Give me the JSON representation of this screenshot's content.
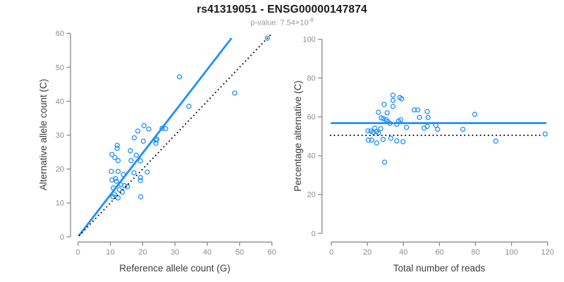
{
  "header": {
    "title": "rs41319051 - ENSG00000147874",
    "pvalue_prefix": "p-value: 7.54×10",
    "pvalue_exponent": "-8"
  },
  "colors": {
    "accent_blue": "#1e90ff",
    "axis_gray": "#898989",
    "tick_label_gray": "#8e8e8e",
    "axis_label_dark": "#3d3d3d"
  },
  "chart_data": [
    {
      "type": "scatter",
      "panel": "left",
      "xlabel": "Reference allele count (G)",
      "ylabel": "Alternative allele count (C)",
      "xlim": [
        0,
        60
      ],
      "ylim": [
        0,
        60
      ],
      "xticks": [
        0,
        10,
        20,
        30,
        40,
        50,
        60
      ],
      "yticks": [
        0,
        10,
        20,
        30,
        40,
        50,
        60
      ],
      "grid": false,
      "point_color": "#1e90ff",
      "points": [
        [
          58.6,
          58.6
        ],
        [
          48.5,
          42.4
        ],
        [
          31.4,
          47.2
        ],
        [
          34.3,
          38.5
        ],
        [
          20.4,
          32.8
        ],
        [
          21.9,
          31.8
        ],
        [
          18.5,
          31.2
        ],
        [
          26.0,
          32.0
        ],
        [
          27.1,
          31.9
        ],
        [
          17.4,
          29.2
        ],
        [
          24.4,
          28.8
        ],
        [
          20.2,
          28.2
        ],
        [
          24.1,
          28.5
        ],
        [
          24.1,
          27.6
        ],
        [
          12.1,
          27.0
        ],
        [
          12.1,
          26.1
        ],
        [
          16.2,
          25.4
        ],
        [
          10.5,
          24.3
        ],
        [
          18.0,
          24.1
        ],
        [
          11.4,
          23.4
        ],
        [
          12.4,
          22.5
        ],
        [
          16.4,
          22.5
        ],
        [
          19.3,
          22.4
        ],
        [
          10.3,
          19.3
        ],
        [
          12.4,
          19.3
        ],
        [
          21.4,
          19.1
        ],
        [
          14.0,
          18.4
        ],
        [
          17.3,
          18.9
        ],
        [
          10.5,
          16.8
        ],
        [
          11.6,
          17.2
        ],
        [
          11.9,
          16.4
        ],
        [
          19.3,
          17.5
        ],
        [
          19.3,
          16.6
        ],
        [
          13.2,
          15.5
        ],
        [
          14.4,
          15.1
        ],
        [
          15.3,
          14.8
        ],
        [
          10.9,
          14.4
        ],
        [
          12.8,
          13.9
        ],
        [
          13.7,
          13.2
        ],
        [
          11.2,
          12.6
        ],
        [
          10.8,
          11.8
        ],
        [
          12.4,
          11.5
        ],
        [
          19.4,
          11.8
        ]
      ],
      "lines": [
        {
          "name": "regression-line",
          "style": "solid",
          "color": "#1e90ff",
          "x1": 0.2,
          "y1": 0.3,
          "x2": 47.5,
          "y2": 58.6
        },
        {
          "name": "identity-line",
          "style": "dotted",
          "color": "#000000",
          "x1": 0.3,
          "y1": 0.3,
          "x2": 59.6,
          "y2": 59.6
        }
      ]
    },
    {
      "type": "scatter",
      "panel": "right",
      "xlabel": "Total number of reads",
      "ylabel": "Percentage alternative (C)",
      "xlim": [
        0,
        120
      ],
      "ylim": [
        0,
        100
      ],
      "xticks": [
        0,
        20,
        40,
        60,
        80,
        100,
        120
      ],
      "yticks": [
        0,
        20,
        40,
        60,
        80,
        100
      ],
      "grid": false,
      "point_color": "#1e90ff",
      "points": [
        [
          34.2,
          71.2
        ],
        [
          38.0,
          70.0
        ],
        [
          39.0,
          69.3
        ],
        [
          34.2,
          68.5
        ],
        [
          29.3,
          66.4
        ],
        [
          34.2,
          65.4
        ],
        [
          46.0,
          63.6
        ],
        [
          48.0,
          63.6
        ],
        [
          26.1,
          62.4
        ],
        [
          31.0,
          62.1
        ],
        [
          53.2,
          62.7
        ],
        [
          79.6,
          61.3
        ],
        [
          48.9,
          59.7
        ],
        [
          27.7,
          59.5
        ],
        [
          28.8,
          59.1
        ],
        [
          53.7,
          59.7
        ],
        [
          30.4,
          58.5
        ],
        [
          31.3,
          57.6
        ],
        [
          37.3,
          57.9
        ],
        [
          38.5,
          58.5
        ],
        [
          32.5,
          56.7
        ],
        [
          36.3,
          56.2
        ],
        [
          41.7,
          54.6
        ],
        [
          51.5,
          54.2
        ],
        [
          53.2,
          55.1
        ],
        [
          58.0,
          55.7
        ],
        [
          59.0,
          53.6
        ],
        [
          24.1,
          54.2
        ],
        [
          27.4,
          53.9
        ],
        [
          20.3,
          52.8
        ],
        [
          22.0,
          52.7
        ],
        [
          23.2,
          52.1
        ],
        [
          25.0,
          52.4
        ],
        [
          26.1,
          51.7
        ],
        [
          73.0,
          53.6
        ],
        [
          20.5,
          48.0
        ],
        [
          22.4,
          48.0
        ],
        [
          25.2,
          46.6
        ],
        [
          28.7,
          48.4
        ],
        [
          33.0,
          49.0
        ],
        [
          36.3,
          47.6
        ],
        [
          39.8,
          47.2
        ],
        [
          29.6,
          36.7
        ],
        [
          91.3,
          47.5
        ],
        [
          118.7,
          51.2
        ]
      ],
      "lines": [
        {
          "name": "mean-percentage-line",
          "style": "solid",
          "color": "#1e90ff",
          "x1": -0.3,
          "y1": 56.8,
          "x2": 119.4,
          "y2": 56.8
        },
        {
          "name": "fifty-percent-line",
          "style": "dotted",
          "color": "#000000",
          "x1": -0.8,
          "y1": 50.5,
          "x2": 116.3,
          "y2": 50.5
        }
      ]
    }
  ]
}
